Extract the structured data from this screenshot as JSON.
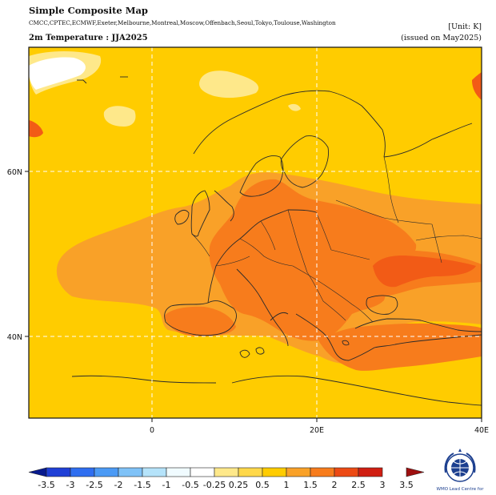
{
  "header": {
    "title": "Simple Composite Map",
    "centers": "CMCC,CPTEC,ECMWF,Exeter,Melbourne,Montreal,Moscow,Offenbach,Seoul,Tokyo,Toulouse,Washington",
    "unit": "[Unit: K]",
    "subtitle": "2m Temperature : JJA2025",
    "issued": "(issued on May2025)"
  },
  "map": {
    "region": "Europe",
    "variable": "2m temperature anomaly",
    "lon_range": [
      -15,
      40
    ],
    "lat_range": [
      30,
      75
    ],
    "x_ticks": [
      "0",
      "20E",
      "40E"
    ],
    "y_ticks": [
      "60N",
      "40N"
    ],
    "gridlines": true,
    "colors": {
      "ocean_base": "#ffcc00",
      "warm_0_5": "#fee88a",
      "warm_1": "#ffcc00",
      "warm_1_5": "#f9a128",
      "warm_2": "#f77c1c",
      "cool_0": "#ffffff",
      "coast": "#2a2a2a",
      "grid": "#ffffff"
    }
  },
  "colorbar": {
    "labels": [
      "-3.5",
      "-3",
      "-2.5",
      "-2",
      "-1.5",
      "-1",
      "-0.5",
      "-0.25",
      "0.25",
      "0.5",
      "1",
      "1.5",
      "2",
      "2.5",
      "3",
      "3.5"
    ],
    "colors": [
      "#081a8e",
      "#1f3fd6",
      "#2f6ef0",
      "#4b9af5",
      "#7fc2f7",
      "#b5e3fa",
      "#f0fbff",
      "#ffffff",
      "#fee88a",
      "#ffd84a",
      "#ffcc00",
      "#f9a128",
      "#f77c1c",
      "#ec4a14",
      "#d01e12",
      "#9e0f0f"
    ]
  },
  "logo": {
    "text": "WMO Lead Centre for"
  }
}
